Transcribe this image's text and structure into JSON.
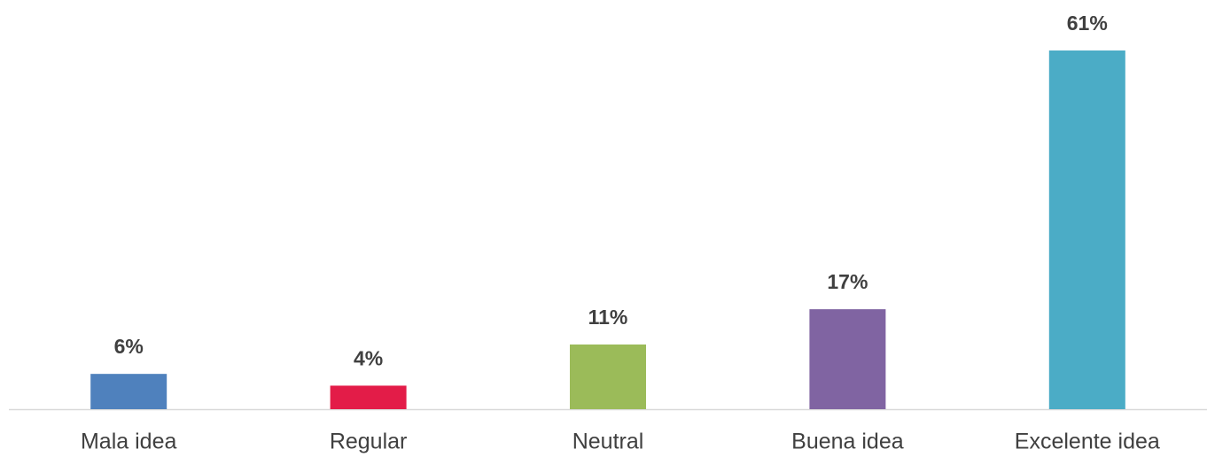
{
  "chart_data": {
    "type": "bar",
    "categories": [
      "Mala idea",
      "Regular",
      "Neutral",
      "Buena idea",
      "Excelente idea"
    ],
    "values": [
      6,
      4,
      11,
      17,
      61
    ],
    "value_labels": [
      "6%",
      "4%",
      "11%",
      "17%",
      "61%"
    ],
    "colors": [
      "#4f81bd",
      "#e31c48",
      "#9bbb59",
      "#8064a2",
      "#4bacc6"
    ]
  }
}
